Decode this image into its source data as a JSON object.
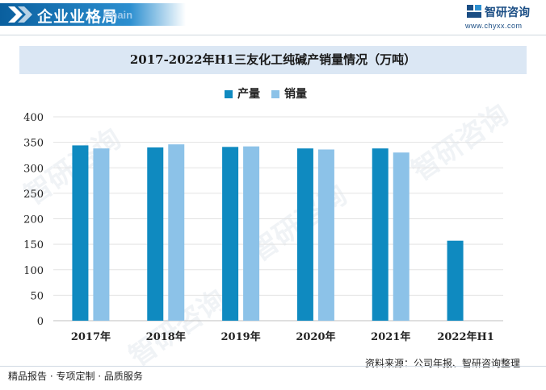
{
  "header": {
    "title": "企业业格局",
    "title_en": "Chain",
    "brand": "智研咨询",
    "url": "www.chyxx.com"
  },
  "footer": {
    "left": "精品报告 · 专项定制 · 品质服务",
    "source": "资料来源：公司年报、智研咨询整理"
  },
  "watermark": "智研咨询",
  "colors": {
    "production": "#0f8ac0",
    "sales": "#8cc2e8",
    "title_bg": "#dbe7f4",
    "header": "#1a6aab"
  },
  "chart_data": {
    "type": "bar",
    "title": "2017-2022年H1三友化工纯碱产销量情况（万吨）",
    "categories": [
      "2017年",
      "2018年",
      "2019年",
      "2020年",
      "2021年",
      "2022年H1"
    ],
    "series": [
      {
        "name": "产量",
        "values": [
          344,
          340,
          341,
          338,
          338,
          157
        ]
      },
      {
        "name": "销量",
        "values": [
          338,
          346,
          342,
          336,
          330,
          null
        ]
      }
    ],
    "ylim": [
      0,
      400
    ],
    "yticks": [
      0,
      50,
      100,
      150,
      200,
      250,
      300,
      350,
      400
    ],
    "grid": true,
    "legend": "top-center"
  }
}
